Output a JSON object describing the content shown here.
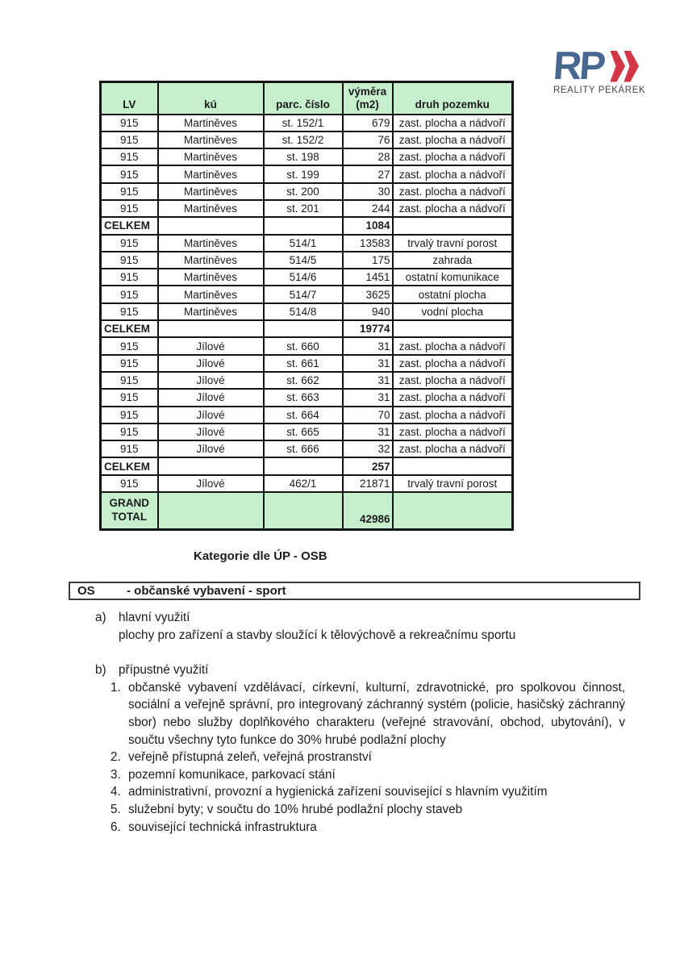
{
  "logo": {
    "rp": "RP",
    "subtitle": "REALITY PEKÁREK",
    "colors": {
      "rp_blue": "#47688f",
      "chevron_red": "#d23748",
      "subtitle_gray": "#43464e"
    }
  },
  "colors": {
    "header_green": "#c6efce",
    "table_border": "#141414"
  },
  "table": {
    "headers": [
      "LV",
      "kú",
      "parc. číslo",
      "výměra\n(m2)",
      "druh pozemku"
    ],
    "rows": [
      {
        "type": "data",
        "cells": [
          "915",
          "Martiněves",
          "st. 152/1",
          "679",
          "zast. plocha a nádvoří"
        ]
      },
      {
        "type": "data",
        "cells": [
          "915",
          "Martiněves",
          "st. 152/2",
          "76",
          "zast. plocha a nádvoří"
        ]
      },
      {
        "type": "data",
        "cells": [
          "915",
          "Martiněves",
          "st. 198",
          "28",
          "zast. plocha a nádvoří"
        ]
      },
      {
        "type": "data",
        "cells": [
          "915",
          "Martiněves",
          "st. 199",
          "27",
          "zast. plocha a nádvoří"
        ]
      },
      {
        "type": "data",
        "cells": [
          "915",
          "Martiněves",
          "st. 200",
          "30",
          "zast. plocha a nádvoří"
        ]
      },
      {
        "type": "data",
        "cells": [
          "915",
          "Martiněves",
          "st. 201",
          "244",
          "zast. plocha a nádvoří"
        ]
      },
      {
        "type": "total",
        "label": "CELKEM",
        "value": "1084"
      },
      {
        "type": "data",
        "cells": [
          "915",
          "Martiněves",
          "514/1",
          "13583",
          "trvalý travní porost"
        ]
      },
      {
        "type": "data",
        "cells": [
          "915",
          "Martiněves",
          "514/5",
          "175",
          "zahrada"
        ]
      },
      {
        "type": "data",
        "cells": [
          "915",
          "Martiněves",
          "514/6",
          "1451",
          "ostatní komunikace"
        ]
      },
      {
        "type": "data",
        "cells": [
          "915",
          "Martiněves",
          "514/7",
          "3625",
          "ostatní plocha"
        ]
      },
      {
        "type": "data",
        "cells": [
          "915",
          "Martiněves",
          "514/8",
          "940",
          "vodní plocha"
        ]
      },
      {
        "type": "total",
        "label": "CELKEM",
        "value": "19774"
      },
      {
        "type": "data",
        "cells": [
          "915",
          "Jílové",
          "st. 660",
          "31",
          "zast. plocha a nádvoří"
        ]
      },
      {
        "type": "data",
        "cells": [
          "915",
          "Jílové",
          "st. 661",
          "31",
          "zast. plocha a nádvoří"
        ]
      },
      {
        "type": "data",
        "cells": [
          "915",
          "Jílové",
          "st. 662",
          "31",
          "zast. plocha a nádvoří"
        ]
      },
      {
        "type": "data",
        "cells": [
          "915",
          "Jílové",
          "st. 663",
          "31",
          "zast. plocha a nádvoří"
        ]
      },
      {
        "type": "data",
        "cells": [
          "915",
          "Jílové",
          "st. 664",
          "70",
          "zast. plocha a nádvoří"
        ]
      },
      {
        "type": "data",
        "cells": [
          "915",
          "Jílové",
          "st. 665",
          "31",
          "zast. plocha a nádvoří"
        ]
      },
      {
        "type": "data",
        "cells": [
          "915",
          "Jílové",
          "st. 666",
          "32",
          "zast. plocha a nádvoří"
        ]
      },
      {
        "type": "total",
        "label": "CELKEM",
        "value": "257"
      },
      {
        "type": "data",
        "cells": [
          "915",
          "Jílové",
          "462/1",
          "21871",
          "trvalý travní porost"
        ]
      },
      {
        "type": "grand",
        "label": "GRAND\nTOTAL",
        "value": "42986"
      }
    ]
  },
  "category_title": "Kategorie dle ÚP - OSB",
  "os_box": {
    "code": "OS",
    "label": "- občanské vybavení - sport"
  },
  "sections": [
    {
      "marker": "a)",
      "title": "hlavní využití",
      "lines": [
        "plochy pro zařízení a stavby sloužící k tělovýchově a rekreačnímu sportu"
      ]
    },
    {
      "marker": "b)",
      "title": "přípustné využití",
      "items": [
        {
          "num": "1.",
          "justify": true,
          "text": "občanské vybavení vzdělávací, církevní, kulturní, zdravotnické, pro spolkovou činnost, sociální a veřejně správní, pro integrovaný záchranný systém (policie, hasičský záchranný sbor) nebo služby doplňkového charakteru (veřejné stravování, obchod, ubytování), v součtu všechny tyto funkce do 30% hrubé podlažní plochy"
        },
        {
          "num": "2.",
          "text": "veřejně přístupná zeleň, veřejná prostranství"
        },
        {
          "num": "3.",
          "text": "pozemní komunikace, parkovací stání"
        },
        {
          "num": "4.",
          "text": "administrativní, provozní a hygienická zařízení související s hlavním využitím"
        },
        {
          "num": "5.",
          "text": "služební byty; v součtu do 10% hrubé podlažní plochy staveb"
        },
        {
          "num": "6.",
          "text": "související technická infrastruktura"
        }
      ]
    }
  ]
}
